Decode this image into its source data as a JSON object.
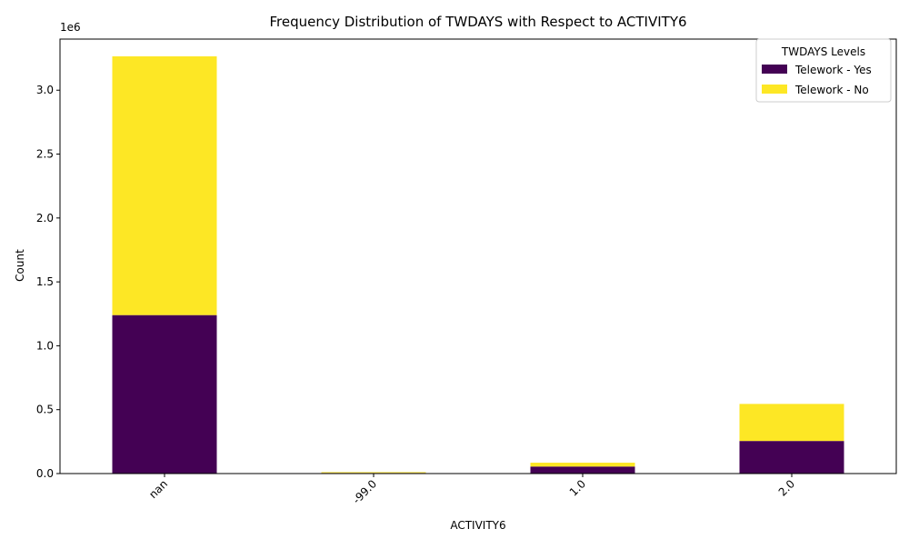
{
  "chart_data": {
    "type": "bar",
    "stacked": true,
    "title": "Frequency Distribution of TWDAYS with Respect to ACTIVITY6",
    "xlabel": "ACTIVITY6",
    "ylabel": "Count",
    "y_offset_label": "1e6",
    "y_scale": 1000000,
    "categories": [
      "nan",
      "-99.0",
      "1.0",
      "2.0"
    ],
    "series": [
      {
        "name": "Telework - Yes",
        "color": "#440154",
        "values": [
          1240000,
          5000,
          55000,
          255000
        ]
      },
      {
        "name": "Telework - No",
        "color": "#fde725",
        "values": [
          2025000,
          6000,
          30000,
          290000
        ]
      }
    ],
    "ylim": [
      0,
      3400000
    ],
    "yticks": [
      0,
      500000,
      1000000,
      1500000,
      2000000,
      2500000,
      3000000
    ],
    "ytick_labels": [
      "0.0",
      "0.5",
      "1.0",
      "1.5",
      "2.0",
      "2.5",
      "3.0"
    ],
    "legend": {
      "title": "TWDAYS Levels",
      "position": "top-right"
    },
    "grid": false
  }
}
